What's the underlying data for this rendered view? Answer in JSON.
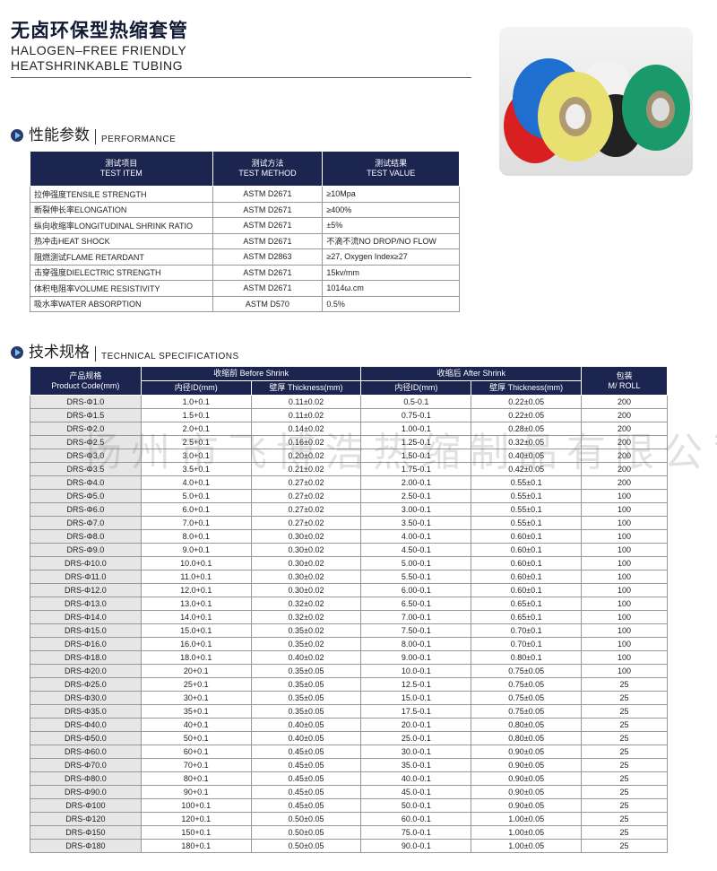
{
  "header": {
    "title_cn": "无卤环保型热缩套管",
    "title_en_1": "HALOGEN–FREE FRIENDLY",
    "title_en_2": "HEATSHRINKABLE TUBING"
  },
  "watermark": "扬州市飞博浩热缩制品有限公司",
  "performance": {
    "title_cn": "性能参数",
    "title_en": "PERFORMANCE",
    "headers": [
      [
        "测试项目",
        "TEST ITEM"
      ],
      [
        "测试方法",
        "TEST METHOD"
      ],
      [
        "测试结果",
        "TEST VALUE"
      ]
    ],
    "rows": [
      [
        "拉伸强度TENSILE STRENGTH",
        "ASTM D2671",
        "≥10Mpa"
      ],
      [
        "断裂伸长率ELONGATION",
        "ASTM D2671",
        "≥400%"
      ],
      [
        "纵向收缩率LONGITUDINAL SHRINK RATIO",
        "ASTM D2671",
        "±5%"
      ],
      [
        "热冲击HEAT SHOCK",
        "ASTM D2671",
        "不滴不流NO DROP/NO FLOW"
      ],
      [
        "阻燃测试FLAME RETARDANT",
        "ASTM D2863",
        "≥27, Oxygen Index≥27"
      ],
      [
        "击穿强度DIELECTRIC STRENGTH",
        "ASTM D2671",
        "15kv/mm"
      ],
      [
        "体积电阻率VOLUME RESISTIVITY",
        "ASTM D2671",
        "1014ω.cm"
      ],
      [
        "吸水率WATER ABSORPTION",
        "ASTM D570",
        "0.5%"
      ]
    ]
  },
  "specs": {
    "title_cn": "技术规格",
    "title_en": "TECHNICAL SPECIFICATIONS",
    "headers": {
      "code_cn": "产品规格",
      "code_en": "Product Code(mm)",
      "before": "收缩前 Before Shrink",
      "after": "收缩后 After Shrink",
      "id": "内径ID(mm)",
      "thickness": "壁厚 Thickness(mm)",
      "pack_cn": "包装",
      "pack_en": "M/ ROLL"
    },
    "rows": [
      [
        "DRS-Φ1.0",
        "1.0+0.1",
        "0.11±0.02",
        "0.5-0.1",
        "0.22±0.05",
        "200"
      ],
      [
        "DRS-Φ1.5",
        "1.5+0.1",
        "0.11±0.02",
        "0.75-0.1",
        "0.22±0.05",
        "200"
      ],
      [
        "DRS-Φ2.0",
        "2.0+0.1",
        "0.14±0.02",
        "1.00-0.1",
        "0.28±0.05",
        "200"
      ],
      [
        "DRS-Φ2.5",
        "2.5+0.1",
        "0.16±0.02",
        "1.25-0.1",
        "0.32±0.05",
        "200"
      ],
      [
        "DRS-Φ3.0",
        "3.0+0.1",
        "0.20±0.02",
        "1.50-0.1",
        "0.40±0.05",
        "200"
      ],
      [
        "DRS-Φ3.5",
        "3.5+0.1",
        "0.21±0.02",
        "1.75-0.1",
        "0.42±0.05",
        "200"
      ],
      [
        "DRS-Φ4.0",
        "4.0+0.1",
        "0.27±0.02",
        "2.00-0.1",
        "0.55±0.1",
        "200"
      ],
      [
        "DRS-Φ5.0",
        "5.0+0.1",
        "0.27±0.02",
        "2.50-0.1",
        "0.55±0.1",
        "100"
      ],
      [
        "DRS-Φ6.0",
        "6.0+0.1",
        "0.27±0.02",
        "3.00-0.1",
        "0.55±0.1",
        "100"
      ],
      [
        "DRS-Φ7.0",
        "7.0+0.1",
        "0.27±0.02",
        "3.50-0.1",
        "0.55±0.1",
        "100"
      ],
      [
        "DRS-Φ8.0",
        "8.0+0.1",
        "0.30±0.02",
        "4.00-0.1",
        "0.60±0.1",
        "100"
      ],
      [
        "DRS-Φ9.0",
        "9.0+0.1",
        "0.30±0.02",
        "4.50-0.1",
        "0.60±0.1",
        "100"
      ],
      [
        "DRS-Φ10.0",
        "10.0+0.1",
        "0.30±0.02",
        "5.00-0.1",
        "0.60±0.1",
        "100"
      ],
      [
        "DRS-Φ11.0",
        "11.0+0.1",
        "0.30±0.02",
        "5.50-0.1",
        "0.60±0.1",
        "100"
      ],
      [
        "DRS-Φ12.0",
        "12.0+0.1",
        "0.30±0.02",
        "6.00-0.1",
        "0.60±0.1",
        "100"
      ],
      [
        "DRS-Φ13.0",
        "13.0+0.1",
        "0.32±0.02",
        "6.50-0.1",
        "0.65±0.1",
        "100"
      ],
      [
        "DRS-Φ14.0",
        "14.0+0.1",
        "0.32±0.02",
        "7.00-0.1",
        "0.65±0.1",
        "100"
      ],
      [
        "DRS-Φ15.0",
        "15.0+0.1",
        "0.35±0.02",
        "7.50-0.1",
        "0.70±0.1",
        "100"
      ],
      [
        "DRS-Φ16.0",
        "16.0+0.1",
        "0.35±0.02",
        "8.00-0.1",
        "0.70±0.1",
        "100"
      ],
      [
        "DRS-Φ18.0",
        "18.0+0.1",
        "0.40±0.02",
        "9.00-0.1",
        "0.80±0.1",
        "100"
      ],
      [
        "DRS-Φ20.0",
        "20+0.1",
        "0.35±0.05",
        "10.0-0.1",
        "0.75±0.05",
        "100"
      ],
      [
        "DRS-Φ25.0",
        "25+0.1",
        "0.35±0.05",
        "12.5-0.1",
        "0.75±0.05",
        "25"
      ],
      [
        "DRS-Φ30.0",
        "30+0.1",
        "0.35±0.05",
        "15.0-0.1",
        "0.75±0.05",
        "25"
      ],
      [
        "DRS-Φ35.0",
        "35+0.1",
        "0.35±0.05",
        "17.5-0.1",
        "0.75±0.05",
        "25"
      ],
      [
        "DRS-Φ40.0",
        "40+0.1",
        "0.40±0.05",
        "20.0-0.1",
        "0.80±0.05",
        "25"
      ],
      [
        "DRS-Φ50.0",
        "50+0.1",
        "0.40±0.05",
        "25.0-0.1",
        "0.80±0.05",
        "25"
      ],
      [
        "DRS-Φ60.0",
        "60+0.1",
        "0.45±0.05",
        "30.0-0.1",
        "0.90±0.05",
        "25"
      ],
      [
        "DRS-Φ70.0",
        "70+0.1",
        "0.45±0.05",
        "35.0-0.1",
        "0.90±0.05",
        "25"
      ],
      [
        "DRS-Φ80.0",
        "80+0.1",
        "0.45±0.05",
        "40.0-0.1",
        "0.90±0.05",
        "25"
      ],
      [
        "DRS-Φ90.0",
        "90+0.1",
        "0.45±0.05",
        "45.0-0.1",
        "0.90±0.05",
        "25"
      ],
      [
        "DRS-Φ100",
        "100+0.1",
        "0.45±0.05",
        "50.0-0.1",
        "0.90±0.05",
        "25"
      ],
      [
        "DRS-Φ120",
        "120+0.1",
        "0.50±0.05",
        "60.0-0.1",
        "1.00±0.05",
        "25"
      ],
      [
        "DRS-Φ150",
        "150+0.1",
        "0.50±0.05",
        "75.0-0.1",
        "1.00±0.05",
        "25"
      ],
      [
        "DRS-Φ180",
        "180+0.1",
        "0.50±0.05",
        "90.0-0.1",
        "1.00±0.05",
        "25"
      ]
    ]
  },
  "colors": {
    "header_bg": "#1c2450",
    "code_cell_bg": "#e6e6e6"
  }
}
